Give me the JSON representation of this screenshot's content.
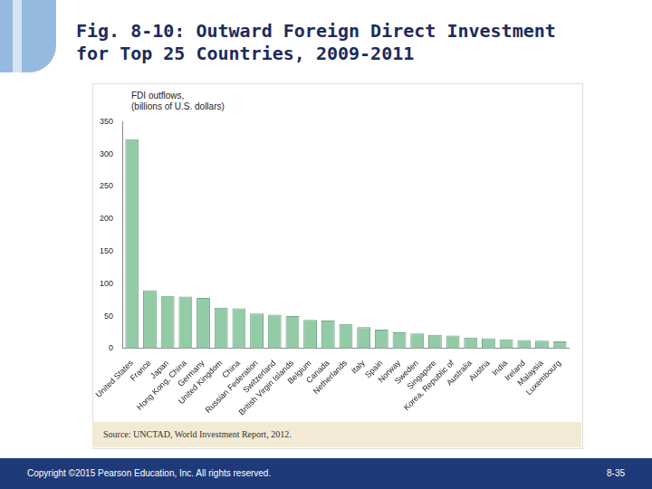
{
  "chart_data": {
    "type": "bar",
    "title": "Fig. 8-10: Outward Foreign Direct Investment for Top 25 Countries, 2009-2011",
    "ylabel": [
      "FDI outflows,",
      "(billions of U.S. dollars)"
    ],
    "categories": [
      "United States",
      "France",
      "Japan",
      "Hong Kong, China",
      "Germany",
      "United Kingdom",
      "China",
      "Russian Federation",
      "Switzerland",
      "British Virgin Islands",
      "Belgium",
      "Canada",
      "Netherlands",
      "Italy",
      "Spain",
      "Norway",
      "Sweden",
      "Singapore",
      "Korea, Republic of",
      "Australia",
      "Austria",
      "India",
      "Ireland",
      "Malaysia",
      "Luxembourg"
    ],
    "values": [
      323,
      90,
      81,
      80,
      78,
      63,
      62,
      54,
      52,
      50,
      44,
      43,
      38,
      33,
      29,
      25,
      23,
      21,
      20,
      17,
      16,
      14,
      13,
      12,
      11
    ],
    "color": "#93cba7",
    "ylim": [
      0,
      350
    ],
    "yticks": [
      0,
      50,
      100,
      150,
      200,
      250,
      300,
      350
    ],
    "grid": false,
    "source": "Source: UNCTAD, World Investment Report, 2012."
  },
  "footer": {
    "copyright": "Copyright ©2015 Pearson Education, Inc. All rights reserved.",
    "page": "8-35"
  }
}
